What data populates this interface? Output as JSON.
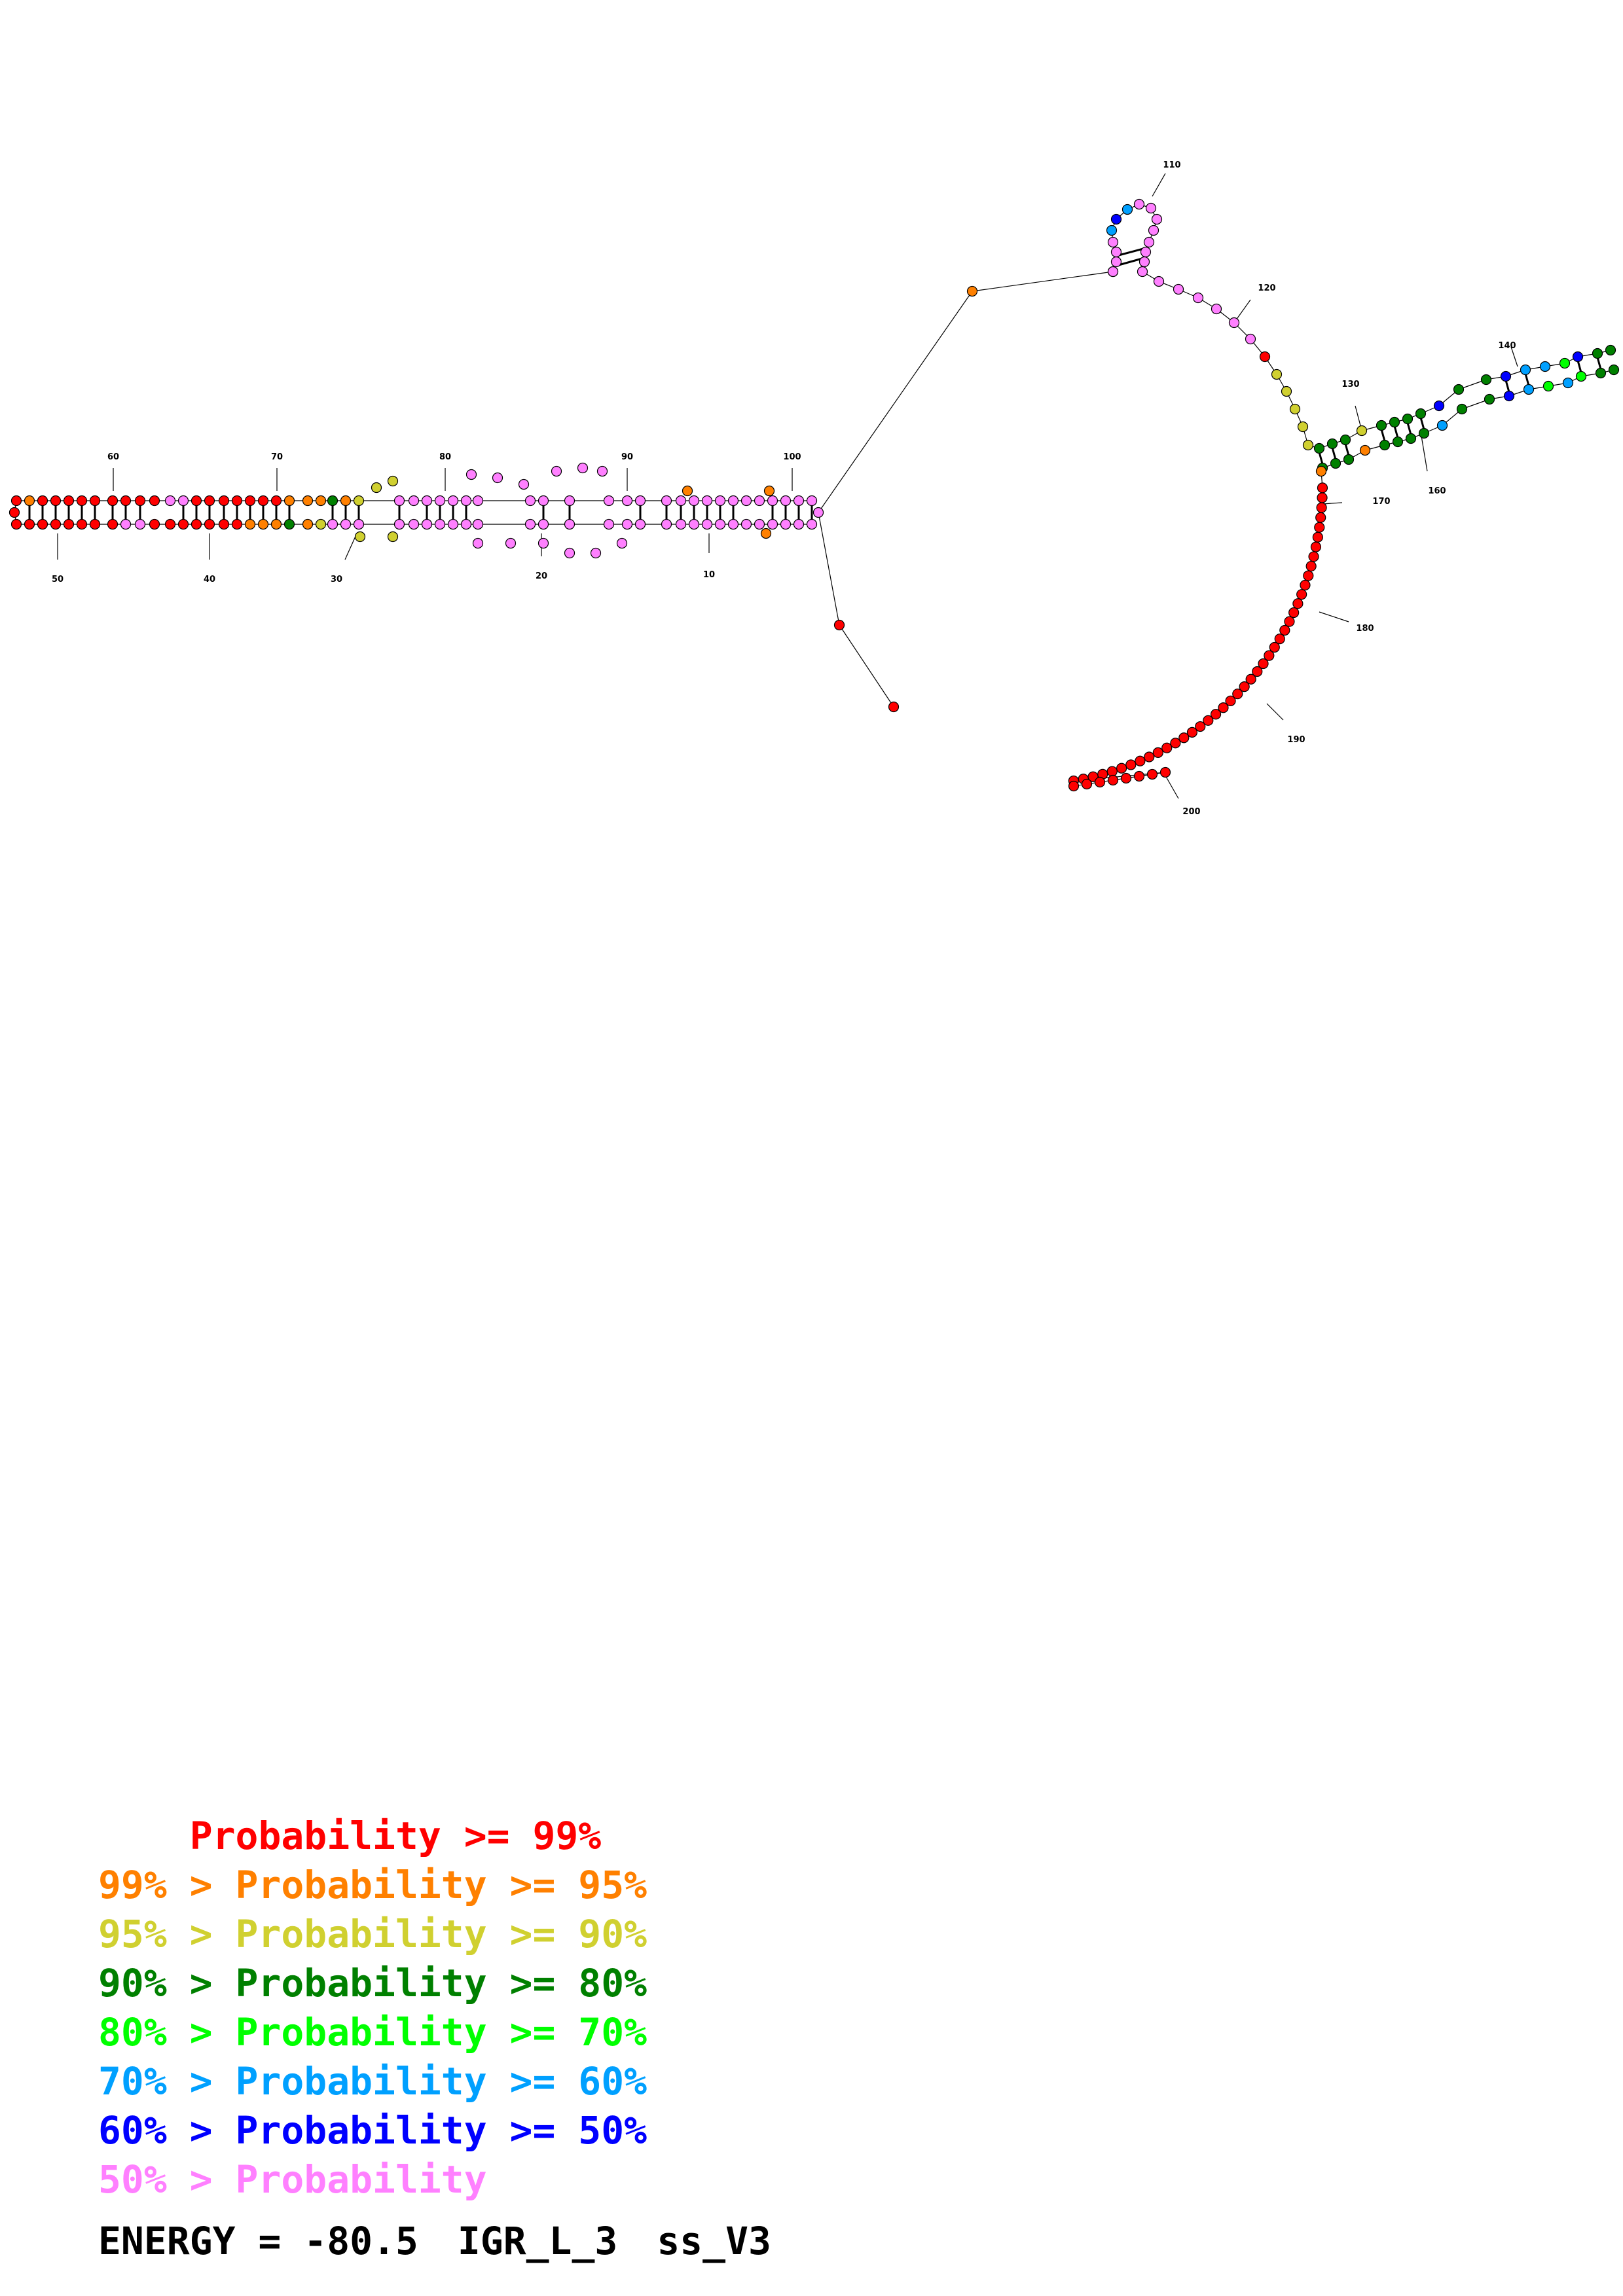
{
  "colors": {
    "p99": "#ff0000",
    "p95": "#ff8000",
    "p90": "#d0d030",
    "p80": "#008000",
    "p70": "#00ff00",
    "p60": "#00a0ff",
    "p50": "#0000ff",
    "low": "#ff80ff"
  },
  "legend": [
    {
      "prefix": "    ",
      "text": "Probability >= 99%",
      "color": "p99"
    },
    {
      "prefix": "99% > ",
      "text": "Probability >= 95%",
      "color": "p95"
    },
    {
      "prefix": "95% > ",
      "text": "Probability >= 90%",
      "color": "p90"
    },
    {
      "prefix": "90% > ",
      "text": "Probability >= 80%",
      "color": "p80"
    },
    {
      "prefix": "80% > ",
      "text": "Probability >= 70%",
      "color": "p70"
    },
    {
      "prefix": "70% > ",
      "text": "Probability >= 60%",
      "color": "p60"
    },
    {
      "prefix": "60% > ",
      "text": "Probability >= 50%",
      "color": "p50"
    },
    {
      "prefix": "50% > ",
      "text": "Probability",
      "color": "low"
    }
  ],
  "footer": {
    "energy": "ENERGY = -80.5",
    "name": "IGR_L_3",
    "version": "ss_V3"
  },
  "position_labels": [
    "10",
    "20",
    "30",
    "40",
    "50",
    "60",
    "70",
    "80",
    "90",
    "100",
    "110",
    "120",
    "130",
    "140",
    "160",
    "170",
    "180",
    "190",
    "200"
  ]
}
